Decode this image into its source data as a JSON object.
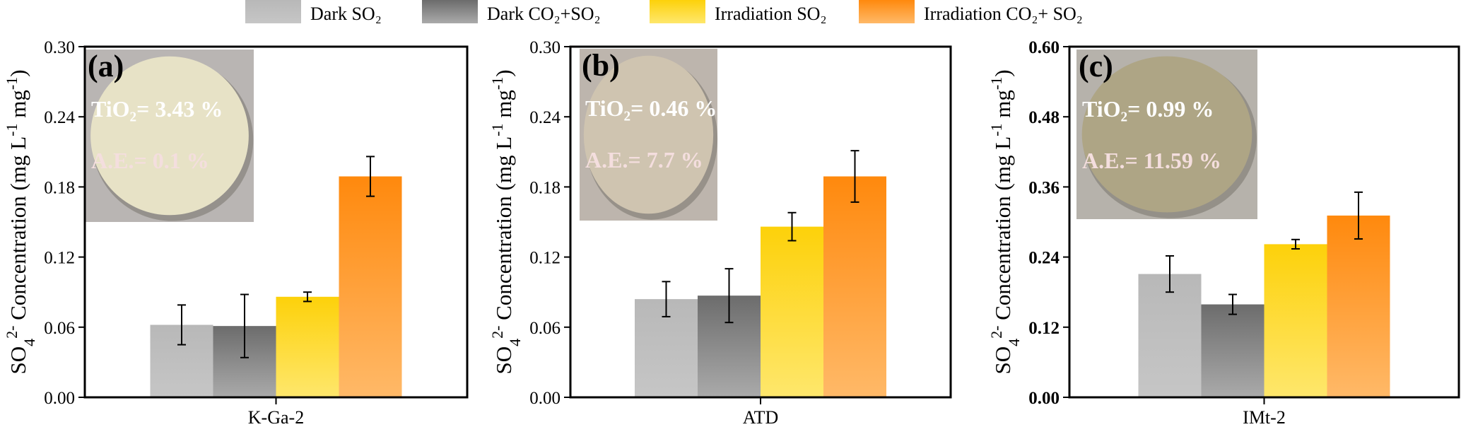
{
  "legend": [
    {
      "label": "Dark SO₂",
      "color_top": "#b8b8b8",
      "color_bottom": "#c6c6c6"
    },
    {
      "label": "Dark CO₂+SO₂",
      "color_top": "#6c6c6c",
      "color_bottom": "#aaaaaa"
    },
    {
      "label": "Irradiation SO₂",
      "color_top": "#fdd10a",
      "color_bottom": "#fee76c"
    },
    {
      "label": "Irradiation CO₂+ SO₂",
      "color_top": "#ff890d",
      "color_bottom": "#ffb968"
    }
  ],
  "ylabel_parts": {
    "a": "SO",
    "sub": "4",
    "sup": "2-",
    "b": " Concentration (mg L",
    "sup2": "-1",
    "c": " mg",
    "sup3": "-1",
    "d": ")"
  },
  "chart_data": [
    {
      "type": "bar",
      "panel": "(a)",
      "category": "K-Ga-2",
      "ylim": [
        0,
        0.3
      ],
      "yticks": [
        "0.00",
        "0.06",
        "0.12",
        "0.18",
        "0.24",
        "0.30"
      ],
      "tick_bold": false,
      "series": [
        {
          "name": "Dark SO₂",
          "value": 0.062,
          "error": 0.017
        },
        {
          "name": "Dark CO₂+SO₂",
          "value": 0.061,
          "error": 0.027
        },
        {
          "name": "Irradiation SO₂",
          "value": 0.086,
          "error": 0.004
        },
        {
          "name": "Irradiation CO₂+ SO₂",
          "value": 0.189,
          "error": 0.017
        }
      ],
      "inset": {
        "tio2": "TiO₂= 3.43 %",
        "ae": "A.E.= 0.1 %",
        "disc": "#e7e2c6",
        "bg": "#b9b5b3"
      }
    },
    {
      "type": "bar",
      "panel": "(b)",
      "category": "ATD",
      "ylim": [
        0,
        0.3
      ],
      "yticks": [
        "0.00",
        "0.06",
        "0.12",
        "0.18",
        "0.24",
        "0.30"
      ],
      "tick_bold": false,
      "series": [
        {
          "name": "Dark SO₂",
          "value": 0.084,
          "error": 0.015
        },
        {
          "name": "Dark CO₂+SO₂",
          "value": 0.087,
          "error": 0.023
        },
        {
          "name": "Irradiation SO₂",
          "value": 0.146,
          "error": 0.012
        },
        {
          "name": "Irradiation CO₂+ SO₂",
          "value": 0.189,
          "error": 0.022
        }
      ],
      "inset": {
        "tio2": "TiO₂= 0.46 %",
        "ae": "A.E.= 7.7 %",
        "disc": "#cfc4b0",
        "bg": "#bdb5ad"
      }
    },
    {
      "type": "bar",
      "panel": "(c)",
      "category": "IMt-2",
      "ylim": [
        0,
        0.6
      ],
      "yticks": [
        "0.00",
        "0.12",
        "0.24",
        "0.36",
        "0.48",
        "0.60"
      ],
      "tick_bold": true,
      "series": [
        {
          "name": "Dark SO₂",
          "value": 0.211,
          "error": 0.031
        },
        {
          "name": "Dark CO₂+SO₂",
          "value": 0.159,
          "error": 0.017
        },
        {
          "name": "Irradiation SO₂",
          "value": 0.262,
          "error": 0.008
        },
        {
          "name": "Irradiation CO₂+ SO₂",
          "value": 0.311,
          "error": 0.04
        }
      ],
      "inset": {
        "tio2": "TiO₂= 0.99 %",
        "ae": "A.E.= 11.59 %",
        "disc": "#aea585",
        "bg": "#b6b2ab"
      }
    }
  ]
}
